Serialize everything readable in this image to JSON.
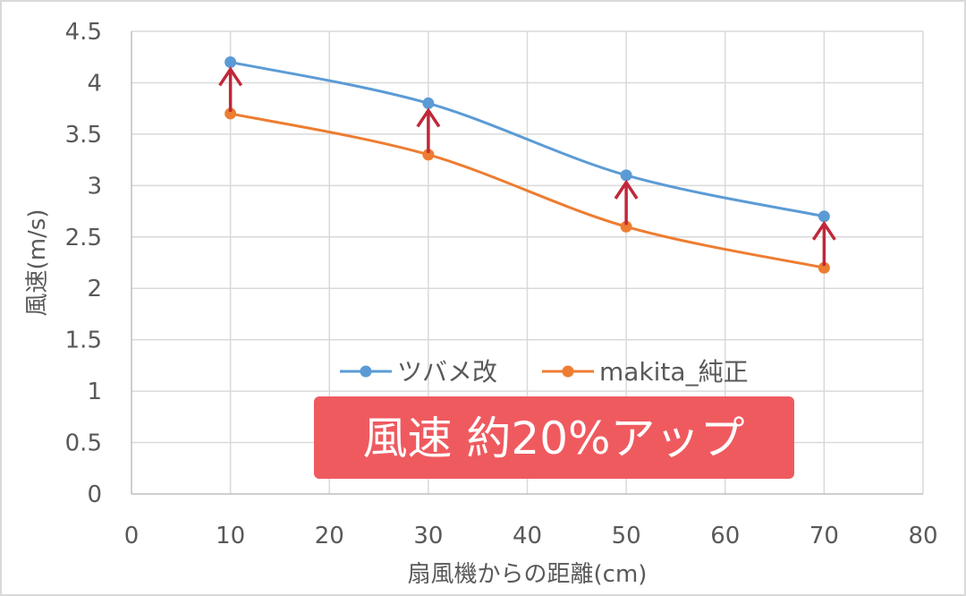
{
  "chart_data": {
    "type": "line",
    "xlabel": "扇風機からの距離(cm)",
    "ylabel": "風速(m/s)",
    "xlim": [
      0,
      80
    ],
    "ylim": [
      0,
      4.5
    ],
    "x_ticks": [
      "0",
      "10",
      "20",
      "30",
      "40",
      "50",
      "60",
      "70",
      "80"
    ],
    "y_ticks": [
      "0",
      "0.5",
      "1",
      "1.5",
      "2",
      "2.5",
      "3",
      "3.5",
      "4",
      "4.5"
    ],
    "grid": true,
    "legend_position": "center",
    "x": [
      10,
      30,
      50,
      70
    ],
    "series": [
      {
        "name": "ツバメ改",
        "values": [
          4.2,
          3.8,
          3.1,
          2.7
        ],
        "color": "#5b9bd5"
      },
      {
        "name": "makita_純正",
        "values": [
          3.7,
          3.3,
          2.6,
          2.2
        ],
        "color": "#ed7d31"
      }
    ],
    "arrow_color": "#c0283a",
    "annotation": {
      "text": "風速 約20%アップ",
      "background": "#ef5a5f"
    }
  }
}
